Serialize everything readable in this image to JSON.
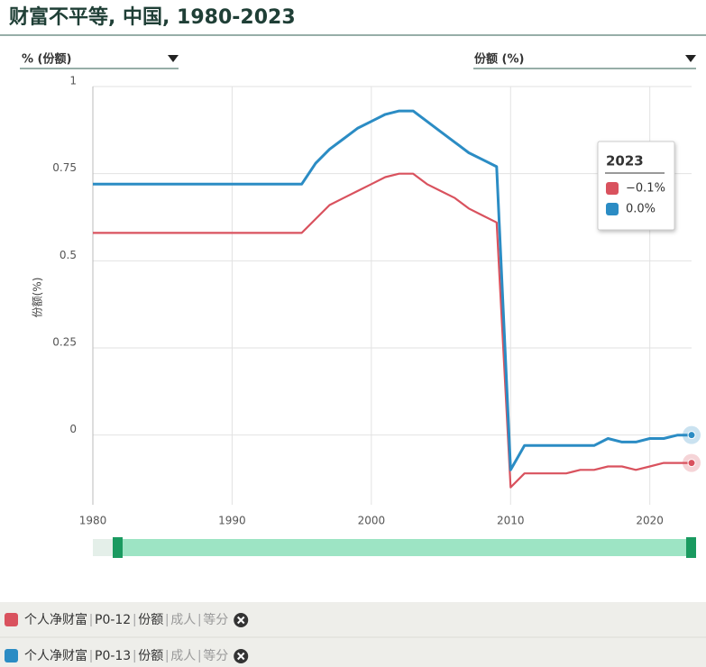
{
  "chart_data": {
    "type": "line",
    "title": "财富不平等, 中国, 1980-2023",
    "dropdowns": [
      "% (份额)",
      "份额 (%)"
    ],
    "y_axis_label": "份额(%)",
    "x": [
      1980,
      1981,
      1982,
      1983,
      1984,
      1985,
      1986,
      1987,
      1988,
      1989,
      1990,
      1991,
      1992,
      1993,
      1994,
      1995,
      1996,
      1997,
      1998,
      1999,
      2000,
      2001,
      2002,
      2003,
      2004,
      2005,
      2006,
      2007,
      2008,
      2009,
      2010,
      2011,
      2012,
      2013,
      2014,
      2015,
      2016,
      2017,
      2018,
      2019,
      2020,
      2021,
      2022,
      2023
    ],
    "xlim": [
      1980,
      2023
    ],
    "xticks": [
      1980,
      1990,
      2000,
      2010,
      2020
    ],
    "ylim": [
      -0.2,
      1
    ],
    "yticks": [
      0,
      0.25,
      0.5,
      0.75,
      1
    ],
    "grid": true,
    "series": [
      {
        "name": "个人净财富",
        "legend_parts": [
          "P0-12",
          "份额",
          "成人",
          "等分"
        ],
        "color": "#d9525e",
        "values": [
          0.58,
          0.58,
          0.58,
          0.58,
          0.58,
          0.58,
          0.58,
          0.58,
          0.58,
          0.58,
          0.58,
          0.58,
          0.58,
          0.58,
          0.58,
          0.58,
          0.62,
          0.66,
          0.68,
          0.7,
          0.72,
          0.74,
          0.75,
          0.75,
          0.72,
          0.7,
          0.68,
          0.65,
          0.63,
          0.61,
          -0.15,
          -0.11,
          -0.11,
          -0.11,
          -0.11,
          -0.1,
          -0.1,
          -0.09,
          -0.09,
          -0.1,
          -0.09,
          -0.08,
          -0.08,
          -0.08
        ]
      },
      {
        "name": "个人净财富",
        "legend_parts": [
          "P0-13",
          "份额",
          "成人",
          "等分"
        ],
        "color": "#2b8cc4",
        "values": [
          0.72,
          0.72,
          0.72,
          0.72,
          0.72,
          0.72,
          0.72,
          0.72,
          0.72,
          0.72,
          0.72,
          0.72,
          0.72,
          0.72,
          0.72,
          0.72,
          0.78,
          0.82,
          0.85,
          0.88,
          0.9,
          0.92,
          0.93,
          0.93,
          0.9,
          0.87,
          0.84,
          0.81,
          0.79,
          0.77,
          -0.1,
          -0.03,
          -0.03,
          -0.03,
          -0.03,
          -0.03,
          -0.03,
          -0.01,
          -0.02,
          -0.02,
          -0.01,
          -0.01,
          0.0,
          0.0
        ]
      }
    ],
    "tooltip": {
      "title": "2023",
      "labels": [
        "−0.1%",
        "0.0%"
      ]
    }
  }
}
